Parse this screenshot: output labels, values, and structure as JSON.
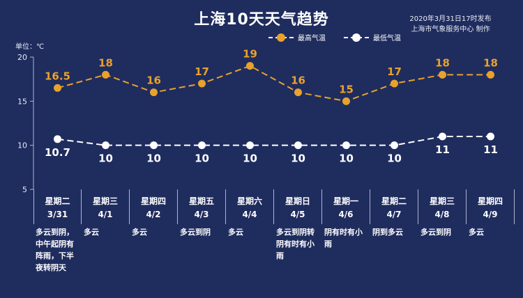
{
  "header": {
    "title": "上海10天天气趋势",
    "publish_line1": "2020年3月31日17时发布",
    "publish_line2": "上海市气象服务中心 制作",
    "unit_label": "单位：℃"
  },
  "colors": {
    "background": "#1f2c5e",
    "high": "#e8a22c",
    "low": "#ffffff"
  },
  "days": [
    {
      "weekday": "星期二",
      "date": "3/31",
      "condition": "多云到阴，中午起阴有阵雨，下半夜转阴天"
    },
    {
      "weekday": "星期三",
      "date": "4/1",
      "condition": "多云"
    },
    {
      "weekday": "星期四",
      "date": "4/2",
      "condition": "多云"
    },
    {
      "weekday": "星期五",
      "date": "4/3",
      "condition": "多云到阴"
    },
    {
      "weekday": "星期六",
      "date": "4/4",
      "condition": "多云"
    },
    {
      "weekday": "星期日",
      "date": "4/5",
      "condition": "多云到阴转阴有时有小雨"
    },
    {
      "weekday": "星期一",
      "date": "4/6",
      "condition": "阴有时有小雨"
    },
    {
      "weekday": "星期二",
      "date": "4/7",
      "condition": "阴到多云"
    },
    {
      "weekday": "星期三",
      "date": "4/8",
      "condition": "多云到阴"
    },
    {
      "weekday": "星期四",
      "date": "4/9",
      "condition": "多云"
    }
  ],
  "chart_data": {
    "type": "line",
    "title": "上海10天天气趋势",
    "ylabel": "单位：℃",
    "categories": [
      "3/31",
      "4/1",
      "4/2",
      "4/3",
      "4/4",
      "4/5",
      "4/6",
      "4/7",
      "4/8",
      "4/9"
    ],
    "ylim": [
      5,
      20
    ],
    "yticks": [
      5,
      10,
      15,
      20
    ],
    "ytick_labels": [
      "5",
      "10",
      "15",
      "20"
    ],
    "legend_position": "top",
    "grid": false,
    "series": [
      {
        "name": "最高气温",
        "values": [
          16.5,
          18,
          16,
          17,
          19,
          16,
          15,
          17,
          18,
          18
        ],
        "labels": [
          "16.5",
          "18",
          "16",
          "17",
          "19",
          "16",
          "15",
          "17",
          "18",
          "18"
        ]
      },
      {
        "name": "最低气温",
        "values": [
          10.7,
          10,
          10,
          10,
          10,
          10,
          10,
          10,
          11,
          11
        ],
        "labels": [
          "10.7",
          "10",
          "10",
          "10",
          "10",
          "10",
          "10",
          "10",
          "11",
          "11"
        ]
      }
    ]
  }
}
